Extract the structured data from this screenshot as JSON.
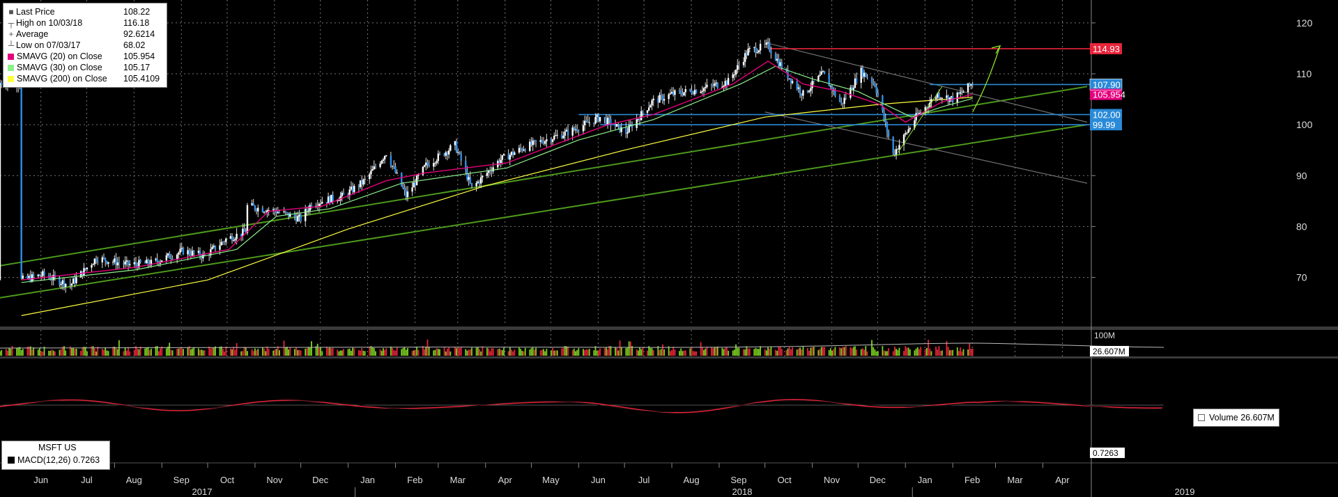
{
  "legend": [
    {
      "symbol": "■",
      "label": "Last Price",
      "value": "108.22",
      "color": "#000000"
    },
    {
      "symbol": "┬",
      "label": "High on 10/03/18",
      "value": "116.18",
      "color": ""
    },
    {
      "symbol": "+",
      "label": "Average",
      "value": "92.6214",
      "color": ""
    },
    {
      "symbol": "┴",
      "label": "Low on 07/03/17",
      "value": "68.02",
      "color": ""
    },
    {
      "symbol": "",
      "label": "SMAVG (20)  on Close",
      "value": "105.954",
      "color": "#e6007e"
    },
    {
      "symbol": "",
      "label": "SMAVG (30)  on Close",
      "value": "105.17",
      "color": "#8cf08c"
    },
    {
      "symbol": "",
      "label": "SMAVG (200)  on Close",
      "value": "105.4109",
      "color": "#ffff40"
    }
  ],
  "volume_legend": {
    "label": "Volume",
    "value": "26.607M",
    "axis_tag": "26.607M",
    "axis_max": "100M"
  },
  "macd_legend": {
    "title": "MSFT US",
    "label": "MACD(12,26)",
    "value": "0.7263",
    "axis_tag": "0.7263"
  },
  "chart_data": {
    "type": "candlestick",
    "ticker": "MSFT US",
    "y_ticks": [
      70,
      80,
      90,
      100,
      110,
      120
    ],
    "ylim": [
      60.5,
      124.5
    ],
    "x_months": [
      "Jun",
      "Jul",
      "Aug",
      "Sep",
      "Oct",
      "Nov",
      "Dec",
      "Jan",
      "Feb",
      "Mar",
      "Apr",
      "May",
      "Jun",
      "Jul",
      "Aug",
      "Sep",
      "Oct",
      "Nov",
      "Dec",
      "Jan",
      "Feb",
      "Mar",
      "Apr"
    ],
    "x_years": [
      "2017",
      "2018",
      "2019"
    ],
    "price_tags": [
      {
        "label": "114.93",
        "value": 114.93,
        "color": "#e8243a"
      },
      {
        "label": "107.90",
        "value": 107.9,
        "color": "#2a8ad8"
      },
      {
        "label": "105.954",
        "value": 105.954,
        "color": "#e6007e"
      },
      {
        "label": "102.00",
        "value": 102.0,
        "color": "#2a8ad8"
      },
      {
        "label": "99.99",
        "value": 99.99,
        "color": "#2a8ad8"
      }
    ],
    "price_series": [
      [
        "2017-06-01",
        69.5
      ],
      [
        "2017-06-15",
        70.5
      ],
      [
        "2017-07-03",
        68.5
      ],
      [
        "2017-07-20",
        73.8
      ],
      [
        "2017-08-10",
        72.5
      ],
      [
        "2017-08-25",
        72.8
      ],
      [
        "2017-09-15",
        75.2
      ],
      [
        "2017-09-29",
        74.2
      ],
      [
        "2017-10-13",
        77.5
      ],
      [
        "2017-10-26",
        79
      ],
      [
        "2017-10-27",
        84
      ],
      [
        "2017-11-15",
        83
      ],
      [
        "2017-12-01",
        81.5
      ],
      [
        "2017-12-08",
        84.5
      ],
      [
        "2017-12-29",
        86
      ],
      [
        "2018-01-12",
        89
      ],
      [
        "2018-01-26",
        94.5
      ],
      [
        "2018-02-08",
        86
      ],
      [
        "2018-02-21",
        92
      ],
      [
        "2018-03-12",
        96
      ],
      [
        "2018-03-23",
        87.5
      ],
      [
        "2018-04-10",
        93
      ],
      [
        "2018-04-26",
        95.5
      ],
      [
        "2018-05-10",
        97
      ],
      [
        "2018-05-25",
        98.5
      ],
      [
        "2018-06-15",
        101.5
      ],
      [
        "2018-07-02",
        98.5
      ],
      [
        "2018-07-19",
        104.5
      ],
      [
        "2018-08-01",
        106
      ],
      [
        "2018-08-20",
        107
      ],
      [
        "2018-09-07",
        108.5
      ],
      [
        "2018-09-20",
        114.5
      ],
      [
        "2018-10-03",
        115.5
      ],
      [
        "2018-10-15",
        110
      ],
      [
        "2018-10-26",
        106
      ],
      [
        "2018-11-08",
        110
      ],
      [
        "2018-11-20",
        104
      ],
      [
        "2018-12-03",
        110.5
      ],
      [
        "2018-12-12",
        108
      ],
      [
        "2018-12-24",
        94.2
      ],
      [
        "2019-01-08",
        101.5
      ],
      [
        "2019-01-22",
        106
      ],
      [
        "2019-02-01",
        105
      ],
      [
        "2019-02-08",
        106.5
      ],
      [
        "2019-02-14",
        108.22
      ]
    ],
    "sma20": [
      [
        "2017-06-01",
        69.5
      ],
      [
        "2017-08-15",
        72
      ],
      [
        "2017-10-15",
        75.5
      ],
      [
        "2017-11-10",
        83
      ],
      [
        "2017-12-15",
        84
      ],
      [
        "2018-01-26",
        89
      ],
      [
        "2018-02-20",
        90.5
      ],
      [
        "2018-04-15",
        92.5
      ],
      [
        "2018-05-20",
        96.5
      ],
      [
        "2018-06-20",
        100
      ],
      [
        "2018-07-20",
        102
      ],
      [
        "2018-09-10",
        108
      ],
      [
        "2018-10-03",
        112.5
      ],
      [
        "2018-10-26",
        108
      ],
      [
        "2018-11-20",
        106.5
      ],
      [
        "2018-12-15",
        104
      ],
      [
        "2019-01-01",
        100.5
      ],
      [
        "2019-01-25",
        104.5
      ],
      [
        "2019-02-14",
        105.954
      ]
    ],
    "sma30": [
      [
        "2017-06-01",
        69
      ],
      [
        "2017-08-15",
        71.5
      ],
      [
        "2017-10-20",
        75.5
      ],
      [
        "2017-11-15",
        82
      ],
      [
        "2017-12-20",
        83.5
      ],
      [
        "2018-02-05",
        88.5
      ],
      [
        "2018-04-15",
        91.5
      ],
      [
        "2018-06-01",
        97
      ],
      [
        "2018-07-20",
        101
      ],
      [
        "2018-09-15",
        108
      ],
      [
        "2018-10-08",
        111.5
      ],
      [
        "2018-11-01",
        109
      ],
      [
        "2018-12-01",
        106.5
      ],
      [
        "2019-01-05",
        101.5
      ],
      [
        "2019-01-25",
        103.5
      ],
      [
        "2019-02-14",
        105.17
      ]
    ],
    "sma200": [
      [
        "2017-06-01",
        62.5
      ],
      [
        "2017-10-01",
        69.5
      ],
      [
        "2018-01-01",
        79.5
      ],
      [
        "2018-04-01",
        88
      ],
      [
        "2018-07-01",
        95
      ],
      [
        "2018-10-01",
        101.5
      ],
      [
        "2018-12-15",
        104
      ],
      [
        "2019-02-14",
        105.41
      ]
    ],
    "trendlines": [
      {
        "name": "upper-channel",
        "color": "#4d9a1c",
        "from": [
          "2017-05-18",
          72.3
        ],
        "to": [
          "2019-04-30",
          107.5
        ]
      },
      {
        "name": "lower-channel",
        "color": "#4d9a1c",
        "from": [
          "2017-05-18",
          66
        ],
        "to": [
          "2019-04-30",
          100
        ]
      },
      {
        "name": "resistance",
        "color": "#707070",
        "from": [
          "2018-10-03",
          116
        ],
        "to": [
          "2019-04-30",
          100.5
        ]
      },
      {
        "name": "support",
        "color": "#707070",
        "from": [
          "2018-10-01",
          102.5
        ],
        "to": [
          "2019-04-30",
          88.5
        ]
      }
    ],
    "projection": [
      [
        "2019-02-14",
        102.5
      ],
      [
        "2019-03-04",
        115.5
      ]
    ],
    "hlines": [
      {
        "value": 114.93,
        "color": "#e8243a",
        "from": "2018-10-03"
      },
      {
        "value": 107.9,
        "color": "#2a8ad8",
        "from": "2019-01-17"
      },
      {
        "value": 102.0,
        "color": "#2a8ad8",
        "from": "2018-06-01"
      },
      {
        "value": 99.99,
        "color": "#2a8ad8",
        "from": "2018-06-15"
      }
    ]
  }
}
